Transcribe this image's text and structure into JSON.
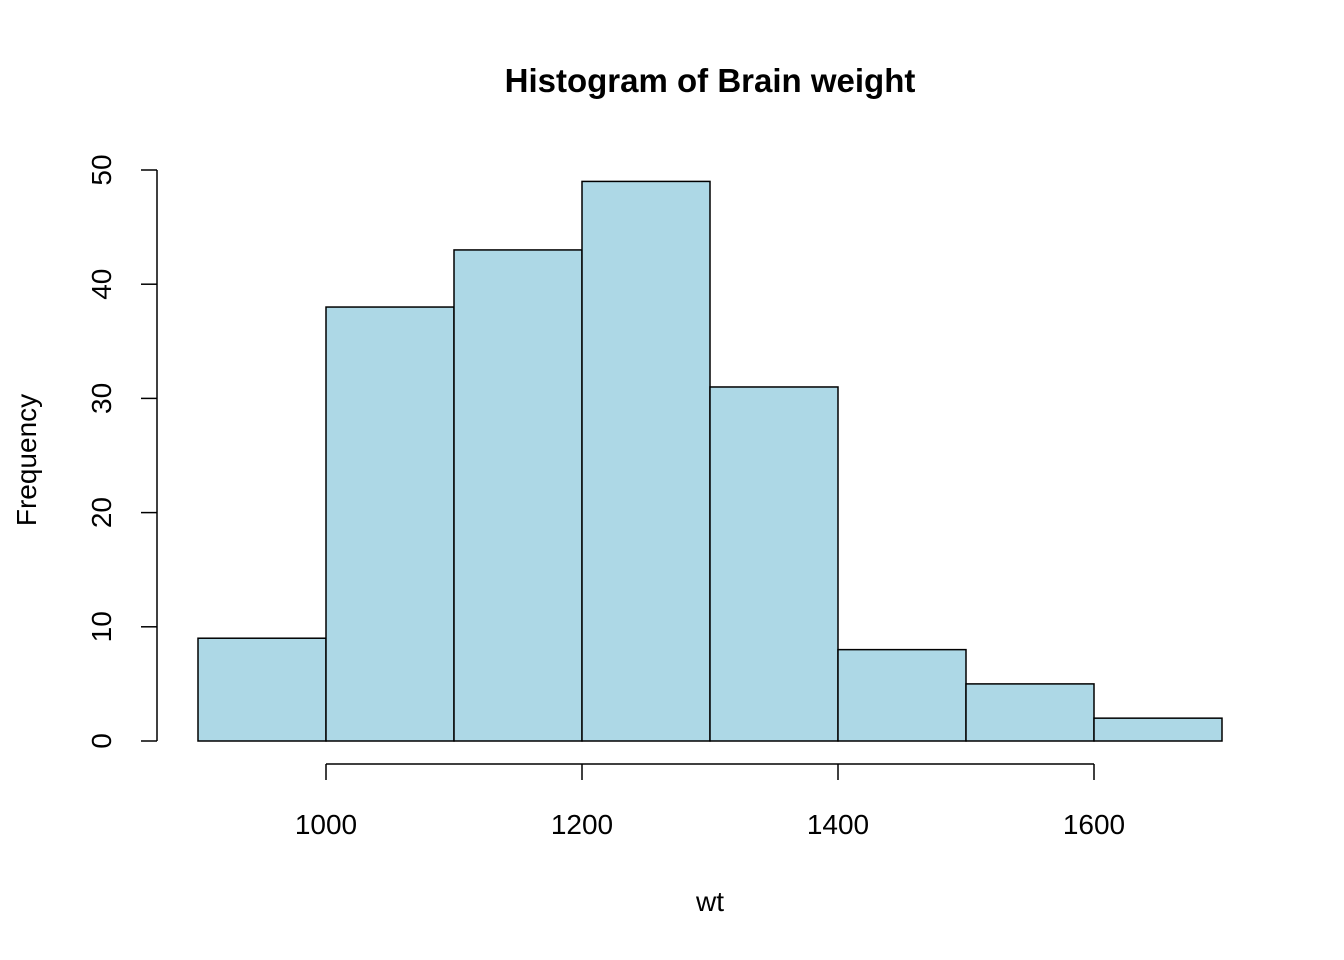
{
  "chart_data": {
    "type": "bar",
    "title": "Histogram of Brain weight",
    "xlabel": "wt",
    "ylabel": "Frequency",
    "bin_edges": [
      900,
      1000,
      1100,
      1200,
      1300,
      1400,
      1500,
      1600,
      1700
    ],
    "values": [
      9,
      38,
      43,
      49,
      31,
      8,
      5,
      2
    ],
    "xlim": [
      900,
      1700
    ],
    "ylim": [
      0,
      50
    ],
    "x_ticks": [
      1000,
      1200,
      1400,
      1600
    ],
    "y_ticks": [
      0,
      10,
      20,
      30,
      40,
      50
    ],
    "bar_color": "#add8e6",
    "border_color": "#000000",
    "grid": false
  }
}
